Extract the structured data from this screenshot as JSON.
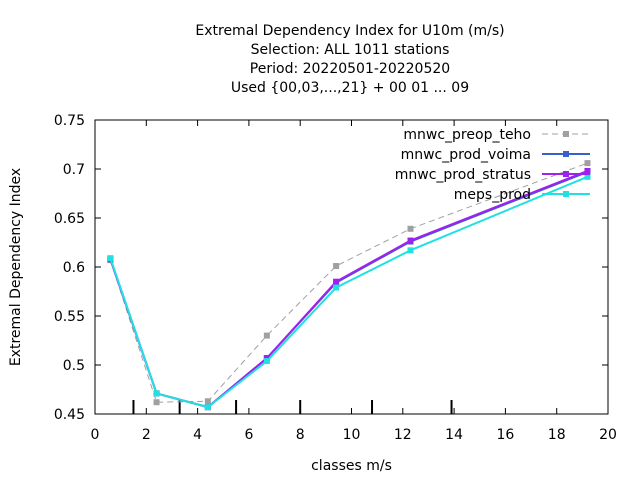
{
  "chart_data": {
    "type": "line",
    "title_lines": [
      "Extremal Dependency Index  for U10m (m/s)",
      "Selection: ALL    1011 stations",
      "Period: 20220501-20220520",
      "Used {00,03,...,21} + 00 01 ... 09"
    ],
    "xlabel": "classes m/s",
    "ylabel": "Extremal Dependency Index",
    "xlim": [
      0,
      20
    ],
    "ylim": [
      0.45,
      0.75
    ],
    "xticks": [
      0,
      2,
      4,
      6,
      8,
      10,
      12,
      14,
      16,
      18,
      20
    ],
    "yticks": [
      0.45,
      0.5,
      0.55,
      0.6,
      0.65,
      0.7,
      0.75
    ],
    "xtick_labels": [
      "0",
      "2",
      "4",
      "6",
      "8",
      "10",
      "12",
      "14",
      "16",
      "18",
      "20"
    ],
    "ytick_labels": [
      "0.45",
      "0.5",
      "0.55",
      "0.6",
      "0.65",
      "0.7",
      "0.75"
    ],
    "grid": false,
    "legend_position": "top-right",
    "class_boundaries": [
      1.5,
      3.3,
      5.5,
      8.0,
      10.8,
      13.9
    ],
    "x": [
      0.6,
      2.4,
      4.4,
      6.7,
      9.4,
      12.3,
      19.2
    ],
    "series": [
      {
        "name": "mnwc_preop_teho",
        "color": "#a0a0a0",
        "dashed": true,
        "values": [
          0.607,
          0.462,
          0.463,
          0.53,
          0.601,
          0.639,
          0.706
        ]
      },
      {
        "name": "mnwc_prod_voima",
        "color": "#3a5fcd",
        "dashed": false,
        "values": [
          0.608,
          0.471,
          0.457,
          0.507,
          0.584,
          0.626,
          0.697
        ]
      },
      {
        "name": "mnwc_prod_stratus",
        "color": "#a020f0",
        "dashed": false,
        "values": [
          0.608,
          0.471,
          0.457,
          0.507,
          0.585,
          0.627,
          0.698
        ]
      },
      {
        "name": "meps_prod",
        "color": "#20e0e0",
        "dashed": false,
        "values": [
          0.609,
          0.471,
          0.457,
          0.504,
          0.579,
          0.617,
          0.692
        ]
      }
    ]
  }
}
